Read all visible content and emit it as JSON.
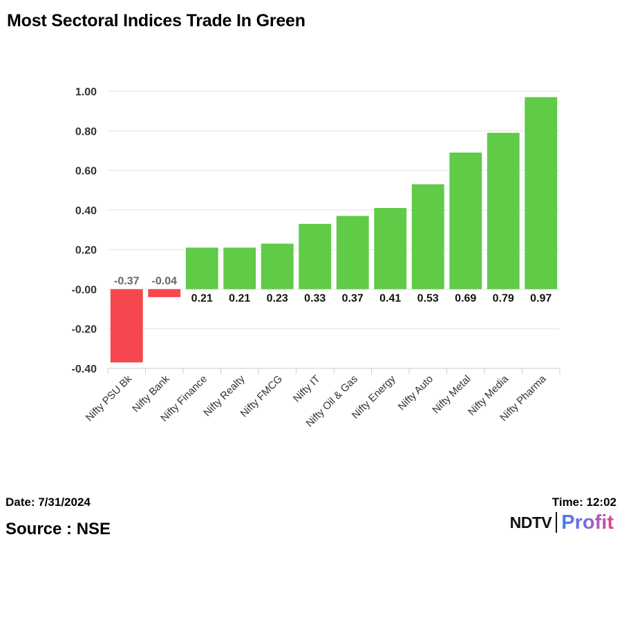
{
  "title": "Most Sectoral Indices Trade In Green",
  "footer": {
    "date": "Date: 7/31/2024",
    "time": "Time: 12:02",
    "source": "Source : NSE"
  },
  "logo": {
    "brand": "NDTV",
    "product": "Profit"
  },
  "colors": {
    "positive": "#5fcb47",
    "negative": "#f5474d",
    "grid": "#e2e2e2",
    "tick": "#333333"
  },
  "chart_data": {
    "type": "bar",
    "title": "Most Sectoral Indices Trade In Green",
    "xlabel": "",
    "ylabel": "",
    "ylim": [
      -0.4,
      1.0
    ],
    "yticks": [
      1.0,
      0.8,
      0.6,
      0.4,
      0.2,
      0.0,
      -0.2,
      -0.4
    ],
    "ytick_labels": [
      "1.00",
      "0.80",
      "0.60",
      "0.40",
      "0.20",
      "-0.00",
      "-0.20",
      "-0.40"
    ],
    "categories": [
      "Nifty PSU Bk",
      "Nifty Bank",
      "Nifty Finance",
      "Nifty Realty",
      "Nifty FMCG",
      "Nifty IT",
      "Nifty Oil & Gas",
      "Nifty Energy",
      "Nifty Auto",
      "Nifty Metal",
      "Nifty Media",
      "Nifty Pharma"
    ],
    "values": [
      -0.37,
      -0.04,
      0.21,
      0.21,
      0.23,
      0.33,
      0.37,
      0.41,
      0.53,
      0.69,
      0.79,
      0.97
    ],
    "value_labels": [
      "-0.37",
      "-0.04",
      "0.21",
      "0.21",
      "0.23",
      "0.33",
      "0.37",
      "0.41",
      "0.53",
      "0.69",
      "0.79",
      "0.97"
    ],
    "grid": true,
    "legend": "none"
  }
}
